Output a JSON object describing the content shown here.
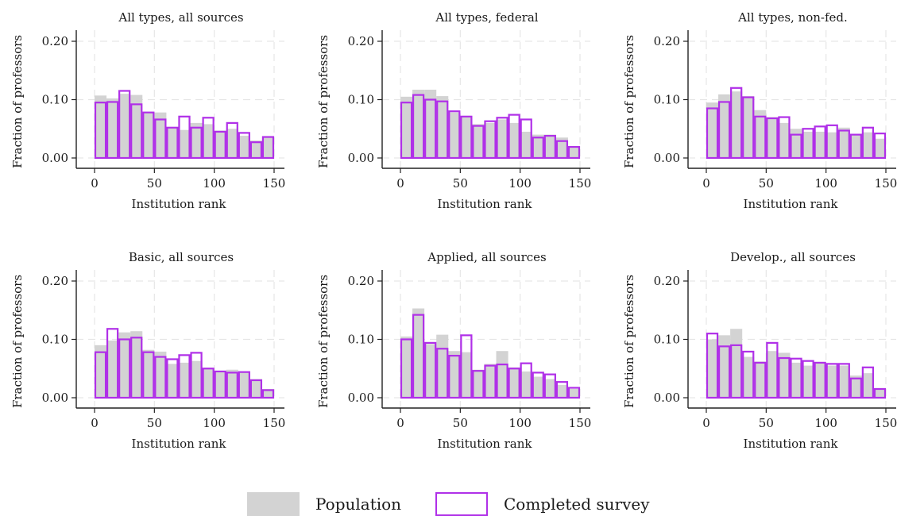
{
  "chart_data": {
    "type": "bar",
    "colors": {
      "population": "#d3d3d3",
      "completed": "#b030e8",
      "grid": "#e6e6e6",
      "axis": "#222222"
    },
    "bin_starts": [
      0,
      10,
      20,
      30,
      40,
      50,
      60,
      70,
      80,
      90,
      100,
      110,
      120,
      130,
      140
    ],
    "bin_width": 10,
    "xlim": [
      0,
      150
    ],
    "xticks": [
      "0",
      "50",
      "100",
      "150"
    ],
    "ylim": [
      0,
      0.2
    ],
    "yticks": [
      "0.00",
      "0.10",
      "0.20"
    ],
    "xlabel": "Institution rank",
    "ylabel": "Fraction of professors",
    "grid": true,
    "legend_position": "bottom",
    "legend": [
      "Population",
      "Completed survey"
    ],
    "series_names": [
      "Population",
      "Completed survey"
    ],
    "panels": [
      {
        "title": "All types, all sources",
        "population": [
          0.107,
          0.102,
          0.11,
          0.108,
          0.078,
          0.078,
          0.053,
          0.048,
          0.06,
          0.058,
          0.047,
          0.05,
          0.038,
          0.03,
          0.036
        ],
        "completed": [
          0.095,
          0.096,
          0.115,
          0.092,
          0.078,
          0.066,
          0.052,
          0.071,
          0.052,
          0.069,
          0.045,
          0.06,
          0.043,
          0.027,
          0.036
        ]
      },
      {
        "title": "All types, federal",
        "population": [
          0.105,
          0.117,
          0.117,
          0.106,
          0.078,
          0.07,
          0.058,
          0.06,
          0.066,
          0.06,
          0.045,
          0.04,
          0.04,
          0.035,
          0.02
        ],
        "completed": [
          0.095,
          0.108,
          0.1,
          0.097,
          0.08,
          0.071,
          0.055,
          0.063,
          0.069,
          0.074,
          0.066,
          0.035,
          0.038,
          0.029,
          0.019
        ]
      },
      {
        "title": "All types, non-fed.",
        "population": [
          0.095,
          0.109,
          0.114,
          0.106,
          0.082,
          0.07,
          0.06,
          0.05,
          0.045,
          0.045,
          0.044,
          0.052,
          0.04,
          0.044,
          0.033
        ],
        "completed": [
          0.085,
          0.096,
          0.12,
          0.104,
          0.071,
          0.068,
          0.07,
          0.04,
          0.05,
          0.054,
          0.056,
          0.047,
          0.04,
          0.052,
          0.042
        ]
      },
      {
        "title": "Basic, all sources",
        "population": [
          0.09,
          0.098,
          0.112,
          0.114,
          0.082,
          0.079,
          0.058,
          0.06,
          0.063,
          0.05,
          0.045,
          0.048,
          0.043,
          0.032,
          0.015
        ],
        "completed": [
          0.078,
          0.118,
          0.1,
          0.103,
          0.078,
          0.07,
          0.066,
          0.073,
          0.077,
          0.05,
          0.045,
          0.043,
          0.044,
          0.03,
          0.013
        ]
      },
      {
        "title": "Applied, all sources",
        "population": [
          0.105,
          0.153,
          0.092,
          0.108,
          0.08,
          0.078,
          0.048,
          0.058,
          0.08,
          0.052,
          0.045,
          0.036,
          0.032,
          0.022,
          0.015
        ],
        "completed": [
          0.1,
          0.142,
          0.094,
          0.084,
          0.072,
          0.107,
          0.046,
          0.055,
          0.057,
          0.05,
          0.059,
          0.043,
          0.04,
          0.027,
          0.017
        ]
      },
      {
        "title": "Develop., all sources",
        "population": [
          0.1,
          0.107,
          0.118,
          0.07,
          0.062,
          0.08,
          0.077,
          0.06,
          0.055,
          0.06,
          0.055,
          0.055,
          0.038,
          0.042,
          0.016
        ],
        "completed": [
          0.11,
          0.088,
          0.09,
          0.079,
          0.06,
          0.094,
          0.068,
          0.067,
          0.063,
          0.06,
          0.058,
          0.058,
          0.033,
          0.052,
          0.015
        ]
      }
    ]
  }
}
